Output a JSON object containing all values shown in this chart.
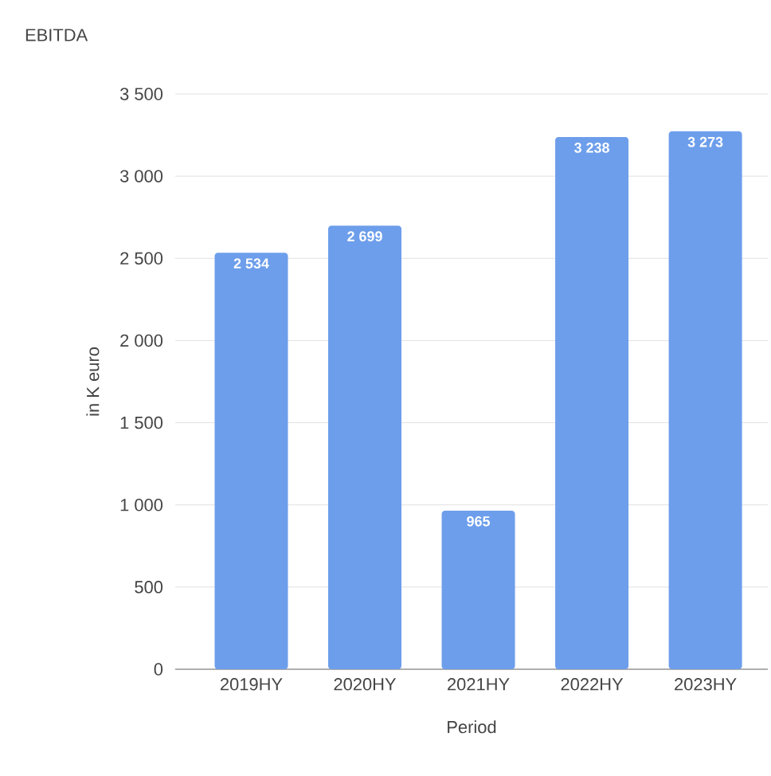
{
  "chart_data": {
    "type": "bar",
    "title": "EBITDA",
    "xlabel": "Period",
    "ylabel": "in K euro",
    "categories": [
      "2019HY",
      "2020HY",
      "2021HY",
      "2022HY",
      "2023HY"
    ],
    "values": [
      2534,
      2699,
      965,
      3238,
      3273
    ],
    "value_labels": [
      "2 534",
      "2 699",
      "965",
      "3 238",
      "3 273"
    ],
    "color": "#6d9eeb",
    "ylim": [
      0,
      3500
    ],
    "yticks": [
      0,
      500,
      {
        "value": 1000,
        "label": "1 000"
      },
      {
        "value": 1500,
        "label": "1 500"
      },
      {
        "value": 2000,
        "label": "2 000"
      },
      {
        "value": 2500,
        "label": "2 500"
      },
      {
        "value": 3000,
        "label": "3 000"
      },
      {
        "value": 3500,
        "label": "3 500"
      }
    ],
    "grid": "y"
  }
}
